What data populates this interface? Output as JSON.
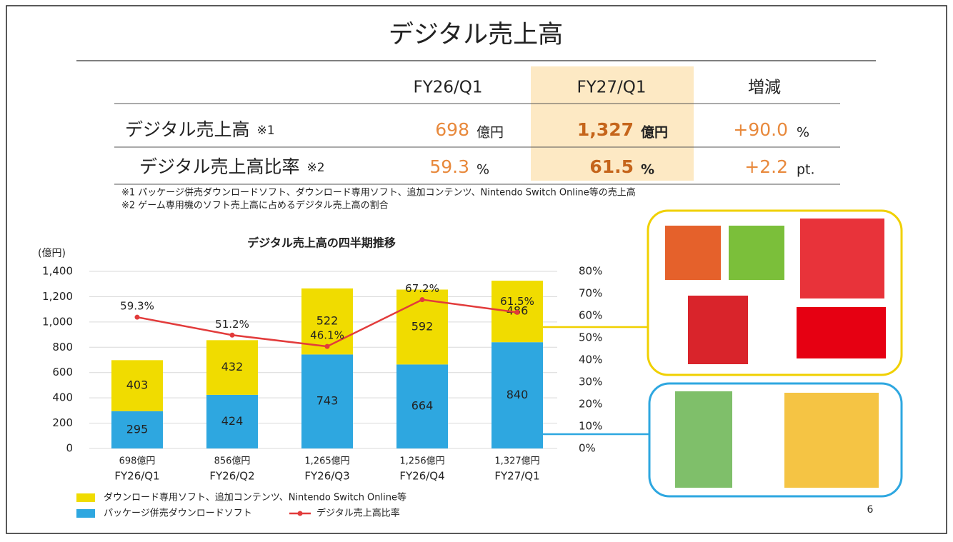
{
  "header": {
    "title": "デジタル売上高"
  },
  "table": {
    "columns": [
      "FY26/Q1",
      "FY27/Q1",
      "増減"
    ],
    "rows": [
      {
        "label": "デジタル売上高",
        "note": "※1",
        "cells": [
          {
            "value": "698",
            "unit": "億円"
          },
          {
            "value": "1,327",
            "unit": "億円"
          },
          {
            "value": "+90.0",
            "unit": "%"
          }
        ]
      },
      {
        "label": "デジタル売上高比率",
        "note": "※2",
        "cells": [
          {
            "value": "59.3",
            "unit": "%"
          },
          {
            "value": "61.5",
            "unit": "%"
          },
          {
            "value": "+2.2",
            "unit": "pt."
          }
        ]
      }
    ]
  },
  "notes": [
    "※1 パッケージ併売ダウンロードソフト、ダウンロード専用ソフト、追加コンテンツ、Nintendo Switch Online等の売上高",
    "※2 ゲーム専用機のソフト売上高に占めるデジタル売上高の割合"
  ],
  "chart_data": {
    "type": "bar",
    "title": "デジタル売上高の四半期推移",
    "y_label": "(億円)",
    "categories": [
      "FY26/Q1",
      "FY26/Q2",
      "FY26/Q3",
      "FY26/Q4",
      "FY27/Q1"
    ],
    "total_labels": [
      "698億円",
      "856億円",
      "1,265億円",
      "1,256億円",
      "1,327億円"
    ],
    "stacked": true,
    "series": [
      {
        "name": "パッケージ併売ダウンロードソフト",
        "color": "#2ea7e0",
        "values": [
          295,
          424,
          743,
          664,
          840
        ]
      },
      {
        "name": "ダウンロード専用ソフト、追加コンテンツ、Nintendo Switch Online等",
        "color": "#f0dc00",
        "values": [
          403,
          432,
          522,
          592,
          486
        ]
      },
      {
        "name": "デジタル売上高比率",
        "type": "line",
        "axis": "y2",
        "color": "#e23b3b",
        "values": [
          59.3,
          51.2,
          46.1,
          67.2,
          61.5
        ],
        "value_labels": [
          "59.3%",
          "51.2%",
          "46.1%",
          "67.2%",
          "61.5%"
        ]
      }
    ],
    "ylim": [
      0,
      1400
    ],
    "yticks": [
      0,
      200,
      400,
      600,
      800,
      {
        "value": 1000,
        "label": "1,000"
      },
      {
        "value": 1200,
        "label": "1,200"
      },
      {
        "value": 1400,
        "label": "1,400"
      }
    ],
    "y2lim": [
      0,
      80
    ],
    "y2ticks": [
      {
        "value": 0,
        "label": "0%"
      },
      {
        "value": 10,
        "label": "10%"
      },
      {
        "value": 20,
        "label": "20%"
      },
      {
        "value": 30,
        "label": "30%"
      },
      {
        "value": 40,
        "label": "40%"
      },
      {
        "value": 50,
        "label": "50%"
      },
      {
        "value": 60,
        "label": "60%"
      },
      {
        "value": 70,
        "label": "70%"
      },
      {
        "value": 80,
        "label": "80%"
      }
    ],
    "grid": true
  },
  "page_number": "6"
}
